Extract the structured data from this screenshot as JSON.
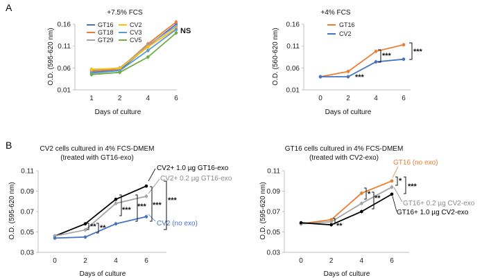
{
  "panel_labels": {
    "a": "A",
    "b": "B"
  },
  "chart_data": [
    {
      "type": "line",
      "title": "+7.5% FCS",
      "xlabel": "Days of culture",
      "ylabel": "O.D. (595-620 nm)",
      "categories": [
        "1",
        "2",
        "4",
        "6"
      ],
      "yticks": [
        "0.01",
        "0.06",
        "0.11",
        "0.16"
      ],
      "ylim": [
        0.01,
        0.16
      ],
      "series": [
        {
          "name": "GT16",
          "color": "#4472c4",
          "values": [
            0.05,
            0.055,
            0.11,
            0.16
          ]
        },
        {
          "name": "GT18",
          "color": "#ed7d31",
          "values": [
            0.053,
            0.058,
            0.115,
            0.165
          ]
        },
        {
          "name": "GT29",
          "color": "#a5a5a5",
          "values": [
            0.055,
            0.06,
            0.112,
            0.155
          ]
        },
        {
          "name": "CV2",
          "color": "#ffc000",
          "values": [
            0.057,
            0.059,
            0.108,
            0.15
          ]
        },
        {
          "name": "CV3",
          "color": "#5b9bd5",
          "values": [
            0.048,
            0.054,
            0.1,
            0.148
          ]
        },
        {
          "name": "CV5",
          "color": "#70ad47",
          "values": [
            0.045,
            0.05,
            0.085,
            0.14
          ]
        }
      ],
      "annotations": [
        "NS"
      ]
    },
    {
      "type": "line",
      "title": "+4% FCS",
      "xlabel": "Days of culture",
      "ylabel": "O.D. (560-620 nm)",
      "categories": [
        "0",
        "2",
        "4",
        "6"
      ],
      "yticks": [
        "0.01",
        "0.06",
        "0.11",
        "0.16"
      ],
      "ylim": [
        0.01,
        0.16
      ],
      "series": [
        {
          "name": "GT16",
          "color": "#ed7d31",
          "values": [
            0.04,
            0.052,
            0.098,
            0.113
          ]
        },
        {
          "name": "CV2",
          "color": "#4472c4",
          "values": [
            0.04,
            0.04,
            0.074,
            0.08
          ]
        }
      ],
      "annotations": [
        "***",
        "***",
        "***"
      ]
    },
    {
      "type": "line",
      "title": "CV2 cells cultured in 4% FCS-DMEM",
      "subtitle": "(treated with GT16-exo)",
      "xlabel": "Days of culture",
      "ylabel": "O.D. (595-620 nm)",
      "categories": [
        "0",
        "2",
        "4",
        "6"
      ],
      "yticks": [
        "0.03",
        "0.05",
        "0.07",
        "0.09",
        "0.11"
      ],
      "ylim": [
        0.03,
        0.11
      ],
      "series": [
        {
          "name": "CV2+ 1.0 µg GT16-exo",
          "color": "#000000",
          "values": [
            0.046,
            0.058,
            0.082,
            0.095
          ]
        },
        {
          "name": "CV2+ 0.2 µg GT16-exo",
          "color": "#a5a5a5",
          "values": [
            0.046,
            0.052,
            0.078,
            0.085
          ]
        },
        {
          "name": "CV2 (no exo)",
          "color": "#4472c4",
          "values": [
            0.044,
            0.045,
            0.058,
            0.065
          ]
        }
      ],
      "annotations": [
        "**",
        "**",
        "***",
        "***",
        "***",
        "***"
      ]
    },
    {
      "type": "line",
      "title": "GT16 cells cultured in 4% FCS-DMEM",
      "subtitle": "(treated with CV2-exo)",
      "xlabel": "Days of culture",
      "ylabel": "O.D. (595-620 nm)",
      "categories": [
        "0",
        "2",
        "4",
        "6"
      ],
      "yticks": [
        "0.03",
        "0.05",
        "0.07",
        "0.09",
        "0.11"
      ],
      "ylim": [
        0.03,
        0.11
      ],
      "series": [
        {
          "name": "GT16 (no exo)",
          "color": "#ed7d31",
          "values": [
            0.058,
            0.062,
            0.088,
            0.1
          ]
        },
        {
          "name": "GT16+ 0.2 µg CV2-exo",
          "color": "#a5a5a5",
          "values": [
            0.058,
            0.06,
            0.078,
            0.094
          ]
        },
        {
          "name": "GT16+ 1.0 µg CV2-exo",
          "color": "#000000",
          "values": [
            0.059,
            0.057,
            0.07,
            0.087
          ]
        }
      ],
      "annotations": [
        "**",
        "*",
        "**",
        "*",
        "***"
      ]
    }
  ]
}
